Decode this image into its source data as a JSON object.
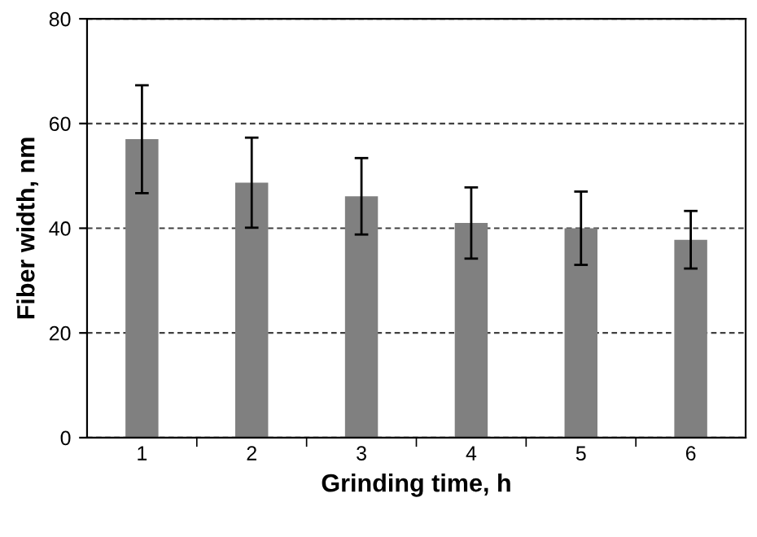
{
  "chart_data": {
    "type": "bar",
    "xlabel": "Grinding time, h",
    "ylabel": "Fiber width, nm",
    "categories": [
      "1",
      "2",
      "3",
      "4",
      "5",
      "6"
    ],
    "values": [
      57,
      48.7,
      46.1,
      41,
      40,
      37.8
    ],
    "errors": [
      10.3,
      8.6,
      7.3,
      6.8,
      7,
      5.5
    ],
    "color": "#808080",
    "ylim": [
      0,
      80
    ],
    "yticks": [
      0,
      20,
      40,
      60,
      80
    ],
    "grid": "y"
  }
}
